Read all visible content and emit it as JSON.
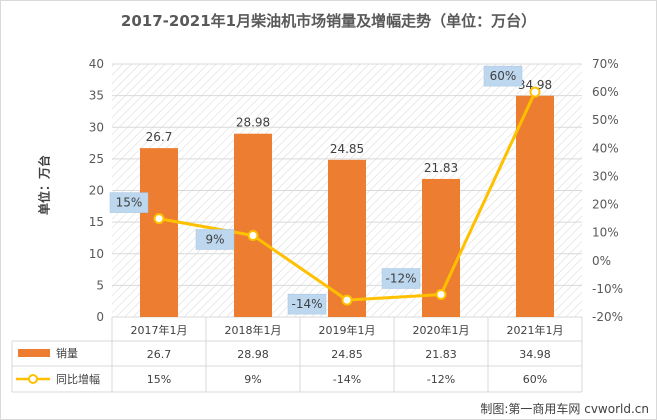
{
  "chart_data": {
    "type": "bar+line",
    "title": "2017-2021年1月柴油机市场销量及增幅走势（单位：万台）",
    "ylabel": "单位：万台",
    "categories": [
      "2017年1月",
      "2018年1月",
      "2019年1月",
      "2020年1月",
      "2021年1月"
    ],
    "series": [
      {
        "name": "销量",
        "type": "bar",
        "axis": "left",
        "values": [
          26.7,
          28.98,
          24.85,
          21.83,
          34.98
        ],
        "labels": [
          "26.7",
          "28.98",
          "24.85",
          "21.83",
          "34.98"
        ],
        "color": "#ed7d31"
      },
      {
        "name": "同比增幅",
        "type": "line",
        "axis": "right",
        "values": [
          15,
          9,
          -14,
          -12,
          60
        ],
        "labels": [
          "15%",
          "9%",
          "-14%",
          "-12%",
          "60%"
        ],
        "color": "#ffc000"
      }
    ],
    "ylim_left": [
      0,
      40
    ],
    "yticks_left": [
      "0",
      "5",
      "10",
      "15",
      "20",
      "25",
      "30",
      "35",
      "40"
    ],
    "ylim_right": [
      -20,
      70
    ],
    "yticks_right": [
      "-20%",
      "-10%",
      "0%",
      "10%",
      "20%",
      "30%",
      "40%",
      "50%",
      "60%",
      "70%"
    ],
    "grid": true,
    "legend": "data-table"
  },
  "watermark": "制图:第一商用车网 cvworld.cn"
}
